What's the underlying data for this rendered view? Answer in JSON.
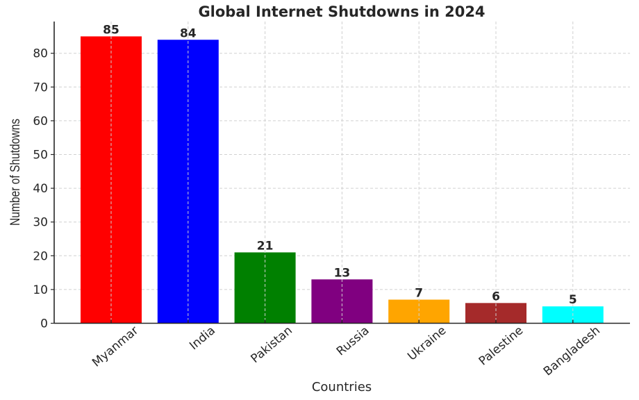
{
  "chart_data": {
    "type": "bar",
    "title": "Global Internet Shutdowns in 2024",
    "xlabel": "Countries",
    "ylabel": "Number of Shutdowns",
    "categories": [
      "Myanmar",
      "India",
      "Pakistan",
      "Russia",
      "Ukraine",
      "Palestine",
      "Bangladesh"
    ],
    "values": [
      85,
      84,
      21,
      13,
      7,
      6,
      5
    ],
    "colors": [
      "#ff0000",
      "#0000ff",
      "#008000",
      "#800080",
      "#ffa500",
      "#a52a2a",
      "#00ffff"
    ],
    "yticks": [
      0,
      10,
      20,
      30,
      40,
      50,
      60,
      70,
      80
    ],
    "ylim": [
      0,
      89.25
    ],
    "grid": true,
    "data_labels": true,
    "xtick_rotation": 40,
    "legend": null
  }
}
